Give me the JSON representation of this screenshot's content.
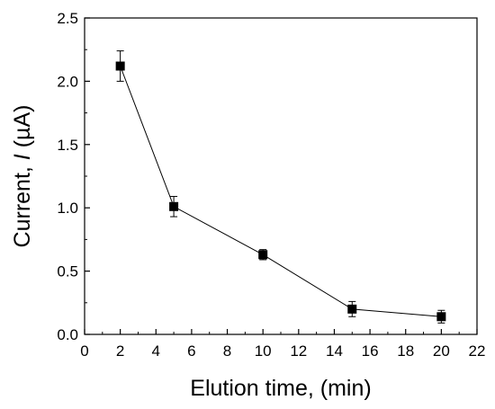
{
  "chart_data": {
    "type": "line",
    "xlabel": "Elution time, (min)",
    "ylabel": {
      "prefix": "Current, ",
      "italic": "I",
      "suffix": " (µA)"
    },
    "xlim": [
      0,
      22
    ],
    "ylim": [
      0,
      2.5
    ],
    "x_ticks": [
      0,
      2,
      4,
      6,
      8,
      10,
      12,
      14,
      16,
      18,
      20,
      22
    ],
    "y_ticks": [
      "0.0",
      "0.5",
      "1.0",
      "1.5",
      "2.0",
      "2.5"
    ],
    "grid": false,
    "marker": "square",
    "series": [
      {
        "x": [
          2,
          5,
          10,
          15,
          20
        ],
        "y": [
          2.12,
          1.01,
          0.63,
          0.2,
          0.14
        ],
        "error": [
          0.12,
          0.08,
          0.04,
          0.06,
          0.05
        ]
      }
    ],
    "colors": {
      "line": "#000000",
      "marker": "#000000",
      "axis": "#000000"
    }
  }
}
